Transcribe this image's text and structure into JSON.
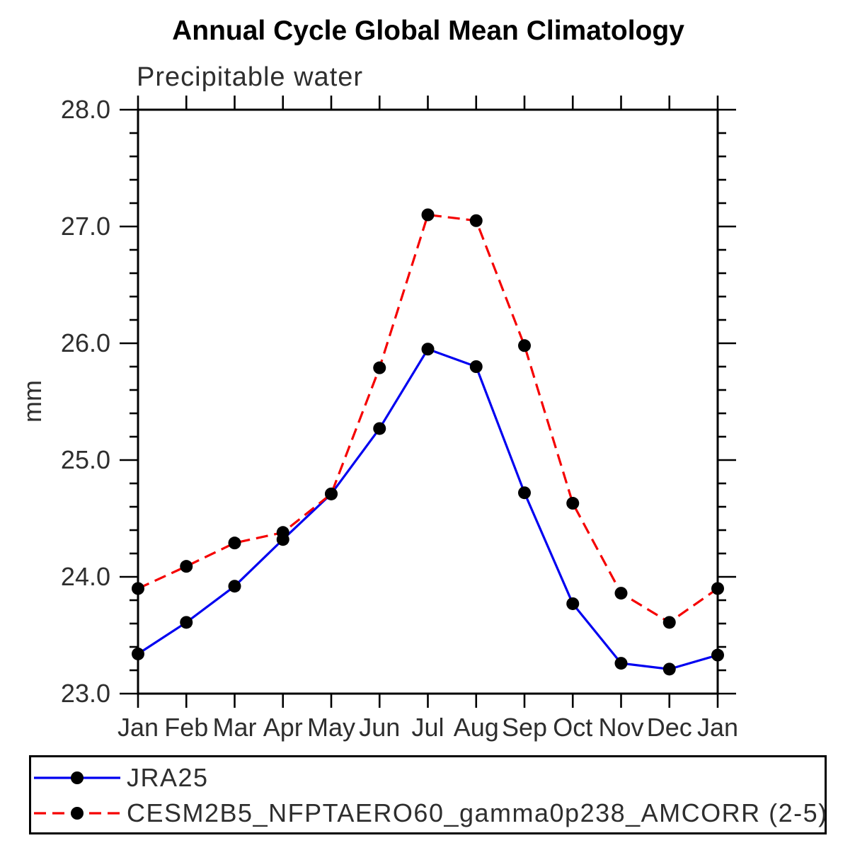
{
  "chart": {
    "title": "Annual Cycle Global Mean Climatology",
    "subtitle": "Precipitable water",
    "ylabel": "mm"
  },
  "legend": {
    "items": [
      {
        "label": "JRA25",
        "color": "#0000f0",
        "style": "solid",
        "marker": "filled-circle"
      },
      {
        "label": "CESM2B5_NFPTAERO60_gamma0p238_AMCORR (2-5)",
        "color": "#f50000",
        "style": "dashed",
        "marker": "filled-circle"
      }
    ]
  },
  "chart_data": {
    "type": "line",
    "title": "Annual Cycle Global Mean Climatology",
    "subtitle": "Precipitable water",
    "xlabel": "",
    "ylabel": "mm",
    "categories": [
      "Jan",
      "Feb",
      "Mar",
      "Apr",
      "May",
      "Jun",
      "Jul",
      "Aug",
      "Sep",
      "Oct",
      "Nov",
      "Dec",
      "Jan"
    ],
    "series": [
      {
        "name": "JRA25",
        "color": "#0000f0",
        "line_style": "solid",
        "marker": "filled-circle",
        "marker_color": "#000000",
        "values": [
          23.34,
          23.61,
          23.92,
          24.32,
          24.71,
          25.27,
          25.95,
          25.8,
          24.72,
          23.77,
          23.26,
          23.21,
          23.33
        ]
      },
      {
        "name": "CESM2B5_NFPTAERO60_gamma0p238_AMCORR (2-5)",
        "color": "#f50000",
        "line_style": "dashed",
        "marker": "filled-circle",
        "marker_color": "#000000",
        "values": [
          23.9,
          24.09,
          24.29,
          24.38,
          24.71,
          25.79,
          27.1,
          27.05,
          25.98,
          24.63,
          23.86,
          23.61,
          23.9
        ]
      }
    ],
    "ylim": [
      23.0,
      28.0
    ],
    "yticks": [
      23.0,
      24.0,
      25.0,
      26.0,
      27.0,
      28.0
    ],
    "ytick_labels": [
      "23.0",
      "24.0",
      "25.0",
      "26.0",
      "27.0",
      "28.0"
    ],
    "y_minor_step": 0.2,
    "grid": false,
    "tick_direction": "out",
    "legend_position": "bottom"
  }
}
